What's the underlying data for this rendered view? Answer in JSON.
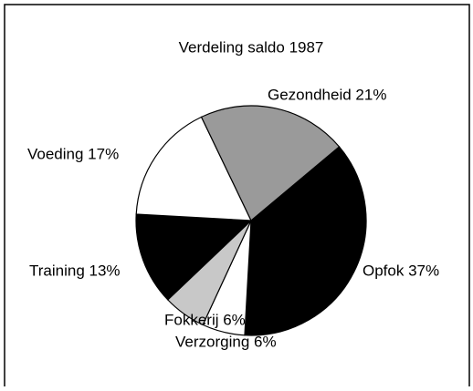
{
  "chart_data": {
    "type": "pie",
    "title": "Verdeling saldo 1987",
    "categories": [
      "Opfok 37%",
      "Verzorging 6%",
      "Fokkerij 6%",
      "Training 13%",
      "Voeding 17%",
      "Gezondheid 21%"
    ],
    "values": [
      37,
      6,
      6,
      13,
      17,
      21
    ],
    "colors": [
      "#000000",
      "#ffffff",
      "#c8c8c8",
      "#000000",
      "#ffffff",
      "#9a9a9a"
    ]
  }
}
